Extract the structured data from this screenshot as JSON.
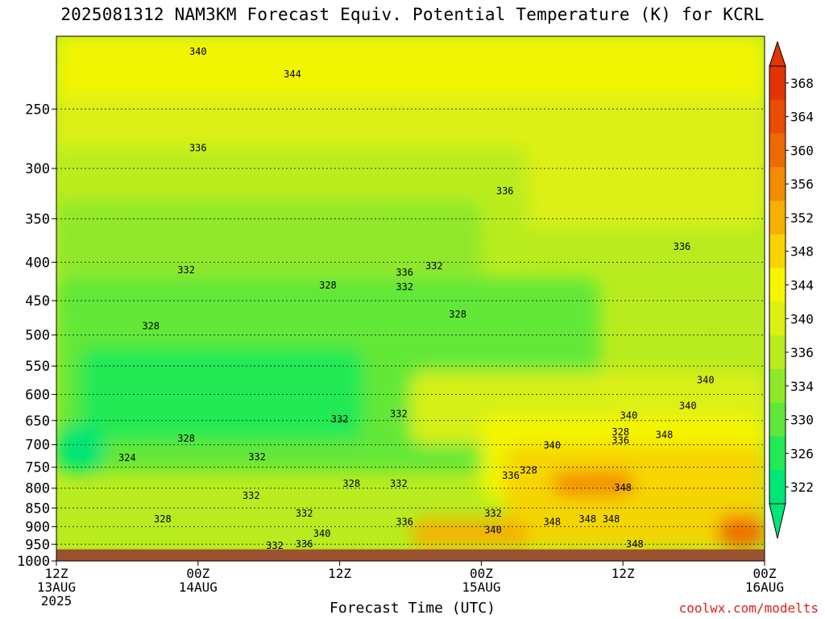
{
  "title": "2025081312 NAM3KM Forecast Equiv. Potential Temperature (K) for KCRL",
  "xlabel": "Forecast Time (UTC)",
  "credit": "coolwx.com/modelts",
  "chart_data": {
    "type": "heatmap",
    "title": "2025081312 NAM3KM Forecast Equiv. Potential Temperature (K) for KCRL",
    "xlabel": "Forecast Time (UTC)",
    "ylabel": "",
    "x_range_hours": [
      0,
      60
    ],
    "y_scale": "log-pressure",
    "y_range": [
      1000,
      200
    ],
    "x_ticks": [
      {
        "hour": 0,
        "lines": [
          "12Z",
          "13AUG",
          "2025"
        ]
      },
      {
        "hour": 12,
        "lines": [
          "00Z",
          "14AUG"
        ]
      },
      {
        "hour": 24,
        "lines": [
          "12Z"
        ]
      },
      {
        "hour": 36,
        "lines": [
          "00Z",
          "15AUG"
        ]
      },
      {
        "hour": 48,
        "lines": [
          "12Z"
        ]
      },
      {
        "hour": 60,
        "lines": [
          "00Z",
          "16AUG"
        ]
      }
    ],
    "y_ticks": [
      250,
      300,
      350,
      400,
      450,
      500,
      550,
      600,
      650,
      700,
      750,
      800,
      850,
      900,
      950,
      1000
    ],
    "colorbar": {
      "ticks": [
        322,
        326,
        330,
        334,
        336,
        340,
        344,
        348,
        352,
        356,
        360,
        364,
        368
      ],
      "colors": [
        "#00e676",
        "#22ea55",
        "#5fe83a",
        "#8ee82a",
        "#b8ec1e",
        "#dcf014",
        "#f6f600",
        "#f7d400",
        "#f5b000",
        "#f28c00",
        "#ee6a00",
        "#ea4c00",
        "#e23400"
      ]
    },
    "ground_color": "#9b5230",
    "ground_below_pressure": 965,
    "grid": true,
    "contour_labels": [
      {
        "hour": 12,
        "p": 210,
        "text": "340"
      },
      {
        "hour": 20,
        "p": 225,
        "text": "344"
      },
      {
        "hour": 12,
        "p": 282,
        "text": "336"
      },
      {
        "hour": 38,
        "p": 322,
        "text": "336"
      },
      {
        "hour": 53,
        "p": 382,
        "text": "336"
      },
      {
        "hour": 11,
        "p": 410,
        "text": "332"
      },
      {
        "hour": 23,
        "p": 430,
        "text": "328"
      },
      {
        "hour": 29.5,
        "p": 413,
        "text": "336"
      },
      {
        "hour": 29.5,
        "p": 432,
        "text": "332"
      },
      {
        "hour": 32,
        "p": 405,
        "text": "332"
      },
      {
        "hour": 34,
        "p": 470,
        "text": "328"
      },
      {
        "hour": 8,
        "p": 487,
        "text": "328"
      },
      {
        "hour": 55,
        "p": 575,
        "text": "340"
      },
      {
        "hour": 53.5,
        "p": 622,
        "text": "340"
      },
      {
        "hour": 24,
        "p": 648,
        "text": "332"
      },
      {
        "hour": 29,
        "p": 638,
        "text": "332"
      },
      {
        "hour": 48.5,
        "p": 641,
        "text": "340"
      },
      {
        "hour": 47.8,
        "p": 674,
        "text": "328"
      },
      {
        "hour": 47.8,
        "p": 692,
        "text": "336"
      },
      {
        "hour": 51.5,
        "p": 680,
        "text": "348"
      },
      {
        "hour": 11,
        "p": 688,
        "text": "328"
      },
      {
        "hour": 42,
        "p": 702,
        "text": "340"
      },
      {
        "hour": 6,
        "p": 730,
        "text": "324"
      },
      {
        "hour": 17,
        "p": 728,
        "text": "332"
      },
      {
        "hour": 38.5,
        "p": 770,
        "text": "336"
      },
      {
        "hour": 40,
        "p": 758,
        "text": "328"
      },
      {
        "hour": 25,
        "p": 790,
        "text": "328"
      },
      {
        "hour": 29,
        "p": 790,
        "text": "332"
      },
      {
        "hour": 16.5,
        "p": 820,
        "text": "332"
      },
      {
        "hour": 48,
        "p": 800,
        "text": "348"
      },
      {
        "hour": 21,
        "p": 865,
        "text": "332"
      },
      {
        "hour": 37,
        "p": 865,
        "text": "332"
      },
      {
        "hour": 9,
        "p": 880,
        "text": "328"
      },
      {
        "hour": 29.5,
        "p": 888,
        "text": "336"
      },
      {
        "hour": 42,
        "p": 888,
        "text": "348"
      },
      {
        "hour": 45,
        "p": 880,
        "text": "348"
      },
      {
        "hour": 47,
        "p": 880,
        "text": "348"
      },
      {
        "hour": 37,
        "p": 910,
        "text": "340"
      },
      {
        "hour": 22.5,
        "p": 920,
        "text": "340"
      },
      {
        "hour": 18.5,
        "p": 955,
        "text": "332"
      },
      {
        "hour": 21,
        "p": 950,
        "text": "336"
      },
      {
        "hour": 49,
        "p": 950,
        "text": "348"
      }
    ],
    "field_regions": [
      {
        "value": 344,
        "h0": 0,
        "h1": 60,
        "p_top": 200,
        "p_bot": 330
      },
      {
        "value": 340,
        "h0": 0,
        "h1": 60,
        "p_top": 240,
        "p_bot": 360
      },
      {
        "value": 336,
        "h0": 0,
        "h1": 40,
        "p_top": 280,
        "p_bot": 390
      },
      {
        "value": 334,
        "h0": 0,
        "h1": 36,
        "p_top": 330,
        "p_bot": 460
      },
      {
        "value": 330,
        "h0": 0,
        "h1": 46,
        "p_top": 420,
        "p_bot": 760
      },
      {
        "value": 326,
        "h0": 2,
        "h1": 26,
        "p_top": 520,
        "p_bot": 690
      },
      {
        "value": 322,
        "h0": 0,
        "h1": 4,
        "p_top": 660,
        "p_bot": 760
      },
      {
        "value": 340,
        "h0": 30,
        "h1": 60,
        "p_top": 560,
        "p_bot": 700
      },
      {
        "value": 344,
        "h0": 36,
        "h1": 60,
        "p_top": 640,
        "p_bot": 830
      },
      {
        "value": 348,
        "h0": 38,
        "h1": 60,
        "p_top": 700,
        "p_bot": 960
      },
      {
        "value": 356,
        "h0": 42,
        "h1": 49,
        "p_top": 760,
        "p_bot": 820
      },
      {
        "value": 352,
        "h0": 30,
        "h1": 40,
        "p_top": 880,
        "p_bot": 960
      },
      {
        "value": 360,
        "h0": 56,
        "h1": 60,
        "p_top": 870,
        "p_bot": 960
      }
    ]
  }
}
